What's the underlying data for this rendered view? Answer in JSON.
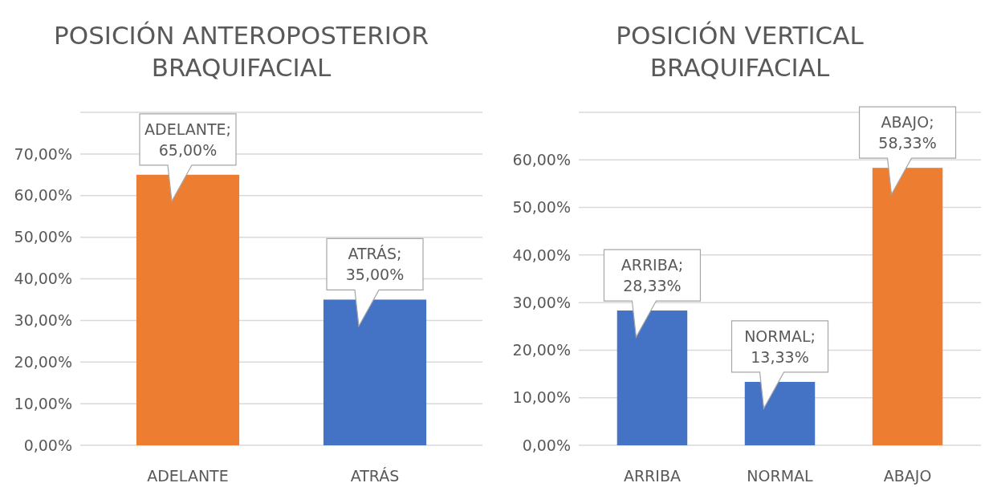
{
  "chart_data": [
    {
      "type": "bar",
      "title": "POSICIÓN ANTEROPOSTERIOR\nBRAQUIFACIAL",
      "categories": [
        "ADELANTE",
        "ATRÁS"
      ],
      "values": [
        65,
        35
      ],
      "colors": [
        "#ed7d31",
        "#4472c4"
      ],
      "value_labels": [
        "ADELANTE; 65,00%",
        "ATRÁS; 35,00%"
      ],
      "ylim": [
        0,
        80
      ],
      "yticks": [
        {
          "value": 0,
          "label": "0,00%"
        },
        {
          "value": 10,
          "label": "10,00%"
        },
        {
          "value": 20,
          "label": "20,00%"
        },
        {
          "value": 30,
          "label": "30,00%"
        },
        {
          "value": 40,
          "label": "40,00%"
        },
        {
          "value": 50,
          "label": "50,00%"
        },
        {
          "value": 60,
          "label": "60,00%"
        },
        {
          "value": 70,
          "label": "70,00%"
        },
        {
          "value": 80,
          "label": null
        }
      ],
      "grid": "y"
    },
    {
      "type": "bar",
      "title": "POSICIÓN VERTICAL\nBRAQUIFACIAL",
      "categories": [
        "ARRIBA",
        "NORMAL",
        "ABAJO"
      ],
      "values": [
        28.33,
        13.33,
        58.33
      ],
      "colors": [
        "#4472c4",
        "#4472c4",
        "#ed7d31"
      ],
      "value_labels": [
        "ARRIBA; 28,33%",
        "NORMAL; 13,33%",
        "ABAJO; 58,33%"
      ],
      "ylim": [
        0,
        70
      ],
      "yticks": [
        {
          "value": 0,
          "label": "0,00%"
        },
        {
          "value": 10,
          "label": "10,00%"
        },
        {
          "value": 20,
          "label": "20,00%"
        },
        {
          "value": 30,
          "label": "30,00%"
        },
        {
          "value": 40,
          "label": "40,00%"
        },
        {
          "value": 50,
          "label": "50,00%"
        },
        {
          "value": 60,
          "label": "60,00%"
        },
        {
          "value": 70,
          "label": null
        }
      ],
      "grid": "y"
    }
  ]
}
